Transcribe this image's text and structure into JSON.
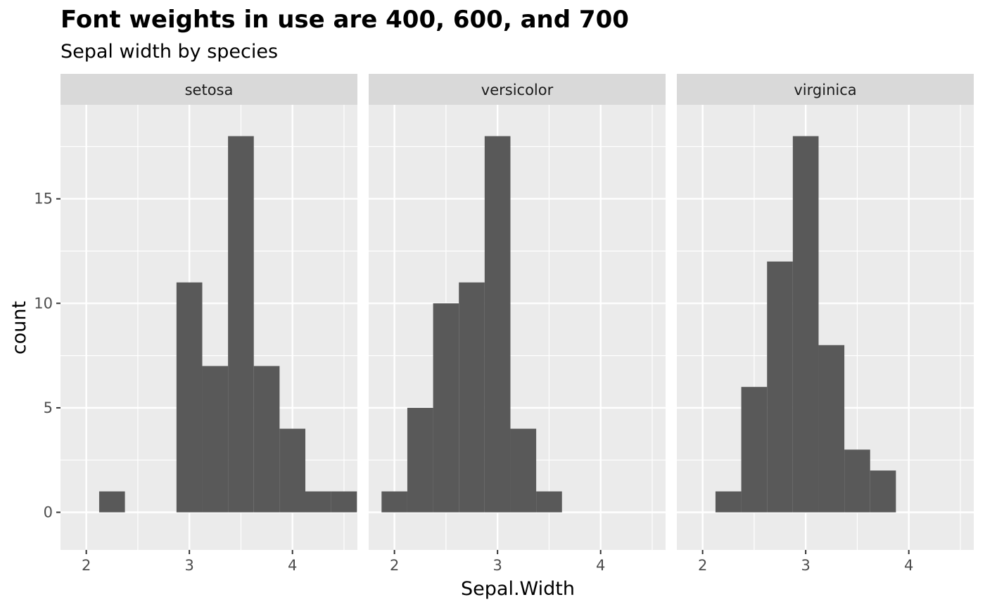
{
  "chart_data": {
    "type": "bar",
    "title": "Font weights in use are 400, 600, and 700",
    "subtitle": "Sepal width by species",
    "xlabel": "Sepal.Width",
    "ylabel": "count",
    "xlim": [
      1.75,
      4.63
    ],
    "ylim": [
      -1.8,
      19.5
    ],
    "xticks": [
      2,
      3,
      4
    ],
    "yticks": [
      0,
      5,
      10,
      15
    ],
    "bin_width": 0.25,
    "grid": true,
    "colors": {
      "bar": "#595959",
      "panel": "#ebebeb",
      "strip": "#d9d9d9",
      "grid": "#ffffff"
    },
    "facets": [
      {
        "name": "setosa",
        "bins": [
          {
            "x": 2.25,
            "count": 1
          },
          {
            "x": 3.0,
            "count": 11
          },
          {
            "x": 3.25,
            "count": 7
          },
          {
            "x": 3.5,
            "count": 18
          },
          {
            "x": 3.75,
            "count": 7
          },
          {
            "x": 4.0,
            "count": 4
          },
          {
            "x": 4.25,
            "count": 1
          },
          {
            "x": 4.5,
            "count": 1
          }
        ]
      },
      {
        "name": "versicolor",
        "bins": [
          {
            "x": 2.0,
            "count": 1
          },
          {
            "x": 2.25,
            "count": 5
          },
          {
            "x": 2.5,
            "count": 10
          },
          {
            "x": 2.75,
            "count": 11
          },
          {
            "x": 3.0,
            "count": 18
          },
          {
            "x": 3.25,
            "count": 4
          },
          {
            "x": 3.5,
            "count": 1
          }
        ]
      },
      {
        "name": "virginica",
        "bins": [
          {
            "x": 2.25,
            "count": 1
          },
          {
            "x": 2.5,
            "count": 6
          },
          {
            "x": 2.75,
            "count": 12
          },
          {
            "x": 3.0,
            "count": 18
          },
          {
            "x": 3.25,
            "count": 8
          },
          {
            "x": 3.5,
            "count": 3
          },
          {
            "x": 3.75,
            "count": 2
          }
        ]
      }
    ]
  }
}
